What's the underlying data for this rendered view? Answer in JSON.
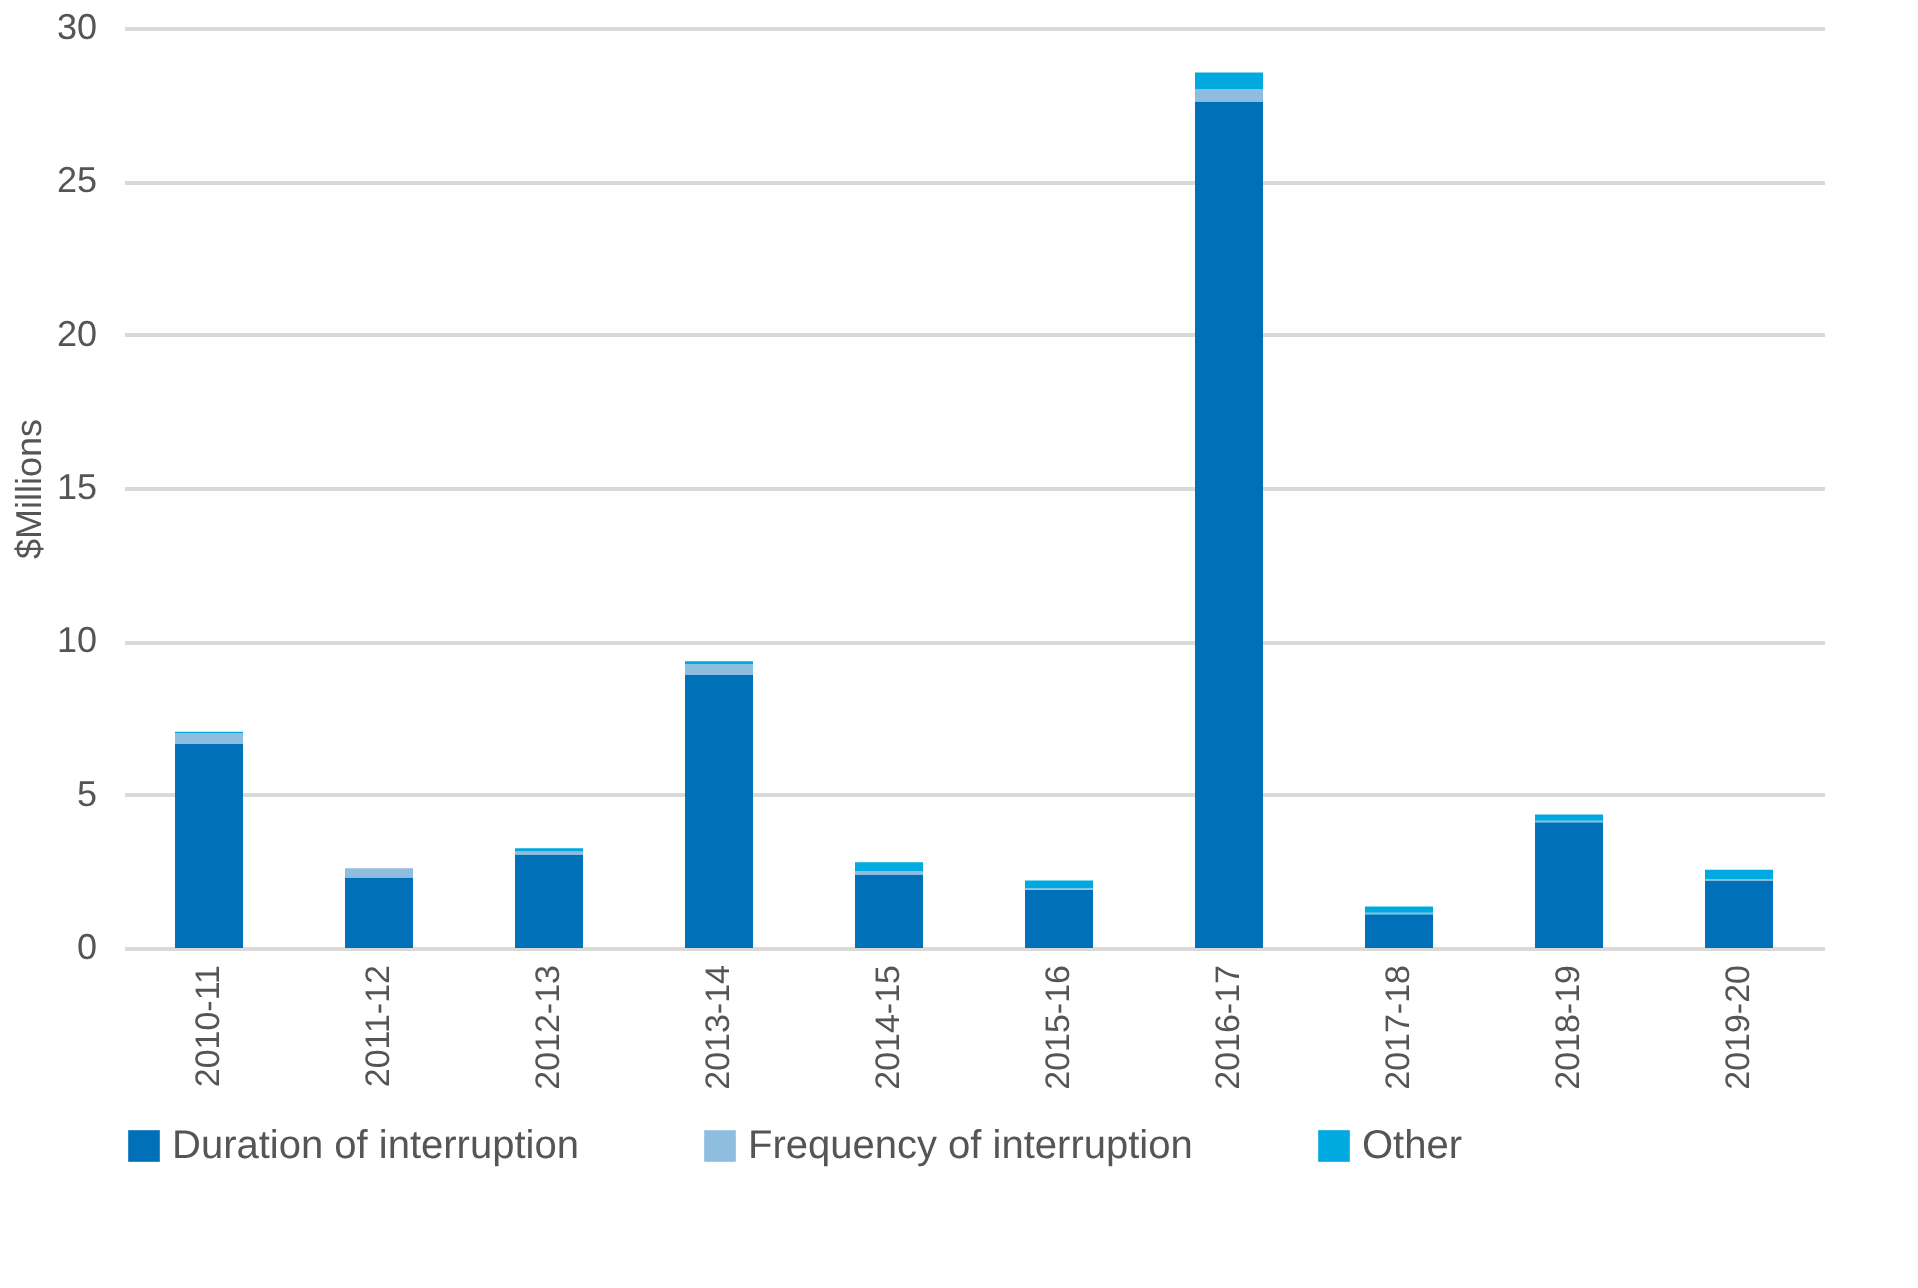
{
  "chart_data": {
    "type": "bar",
    "stacked": true,
    "ylabel": "$Millions",
    "categories": [
      "2010-11",
      "2011-12",
      "2012-13",
      "2013-14",
      "2014-15",
      "2015-16",
      "2016-17",
      "2017-18",
      "2018-19",
      "2019-20"
    ],
    "series": [
      {
        "name": "Duration of interruption",
        "color": "#0070b8",
        "values": [
          6.65,
          2.3,
          3.05,
          8.9,
          2.4,
          1.9,
          27.6,
          1.1,
          4.1,
          2.2
        ]
      },
      {
        "name": "Frequency of interruption",
        "color": "#8fbde0",
        "values": [
          0.35,
          0.3,
          0.1,
          0.35,
          0.1,
          0.05,
          0.4,
          0.05,
          0.05,
          0.05
        ]
      },
      {
        "name": "Other",
        "color": "#00a9e0",
        "values": [
          0.05,
          null,
          0.1,
          0.1,
          0.3,
          0.25,
          0.55,
          0.2,
          0.2,
          0.3
        ]
      }
    ],
    "ylim": [
      0,
      30
    ],
    "yticks": [
      0,
      5,
      10,
      15,
      20,
      25,
      30
    ],
    "grid": "y",
    "legend": "bottom"
  }
}
